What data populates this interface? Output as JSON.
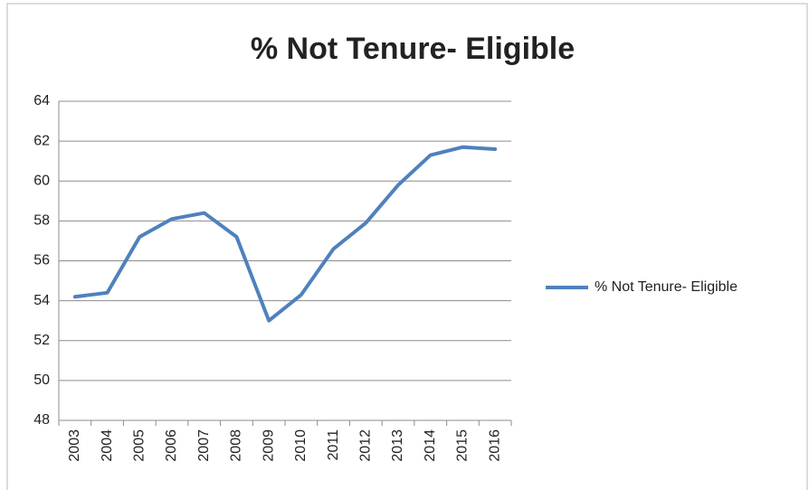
{
  "chart_data": {
    "type": "line",
    "title": "% Not Tenure- Eligible",
    "categories": [
      "2003",
      "2004",
      "2005",
      "2006",
      "2007",
      "2008",
      "2009",
      "2010",
      "2011",
      "2012",
      "2013",
      "2014",
      "2015",
      "2016"
    ],
    "series": [
      {
        "name": "% Not Tenure- Eligible",
        "color": "#4f81bd",
        "values": [
          54.2,
          54.4,
          57.2,
          58.1,
          58.4,
          57.2,
          53.0,
          54.3,
          56.6,
          57.9,
          59.8,
          61.3,
          61.7,
          61.6
        ]
      }
    ],
    "ylim": [
      48,
      64
    ],
    "yticks": [
      48,
      50,
      52,
      54,
      56,
      58,
      60,
      62,
      64
    ],
    "grid": true,
    "legend": "right"
  }
}
